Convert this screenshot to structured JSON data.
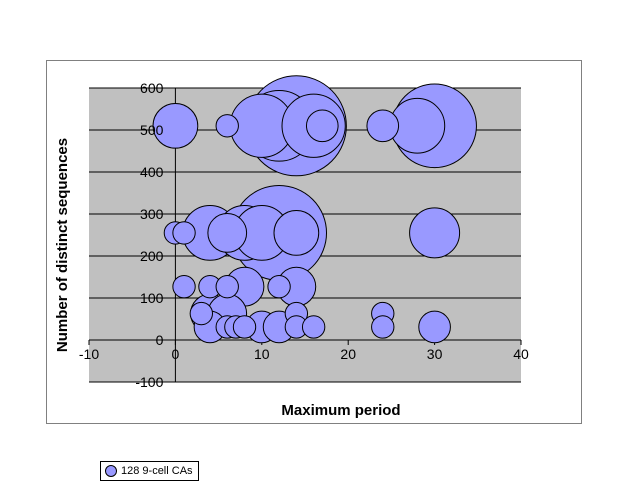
{
  "chart_data": {
    "type": "bubble",
    "xlabel": "Maximum period",
    "ylabel": "Number of distinct sequences",
    "xlim": [
      -10,
      40
    ],
    "ylim": [
      -100,
      600
    ],
    "x_ticks": [
      "-10",
      "0",
      "10",
      "20",
      "30",
      "40"
    ],
    "y_ticks": [
      "-100",
      "0",
      "100",
      "200",
      "300",
      "400",
      "500",
      "600"
    ],
    "grid": "horizontal",
    "legend_position": "bottom-left",
    "plot_background": "#c0c0c0",
    "bubble_color": "#9999ff",
    "series": [
      {
        "name": "128 9-cell CAs",
        "points": [
          {
            "x": 0,
            "y": 510,
            "size": 2
          },
          {
            "x": 6,
            "y": 510,
            "size": 0.5
          },
          {
            "x": 10,
            "y": 510,
            "size": 4
          },
          {
            "x": 12,
            "y": 510,
            "size": 5
          },
          {
            "x": 14,
            "y": 510,
            "size": 10
          },
          {
            "x": 16,
            "y": 510,
            "size": 4
          },
          {
            "x": 17,
            "y": 510,
            "size": 1
          },
          {
            "x": 24,
            "y": 510,
            "size": 1
          },
          {
            "x": 28,
            "y": 510,
            "size": 3
          },
          {
            "x": 30,
            "y": 510,
            "size": 7
          },
          {
            "x": 0,
            "y": 255,
            "size": 0.5
          },
          {
            "x": 1,
            "y": 255,
            "size": 0.5
          },
          {
            "x": 4,
            "y": 255,
            "size": 3
          },
          {
            "x": 6,
            "y": 255,
            "size": 1.5
          },
          {
            "x": 8,
            "y": 255,
            "size": 3
          },
          {
            "x": 10,
            "y": 255,
            "size": 3
          },
          {
            "x": 12,
            "y": 255,
            "size": 9
          },
          {
            "x": 14,
            "y": 255,
            "size": 2
          },
          {
            "x": 30,
            "y": 255,
            "size": 2.5
          },
          {
            "x": 1,
            "y": 127,
            "size": 0.5
          },
          {
            "x": 4,
            "y": 127,
            "size": 0.5
          },
          {
            "x": 6,
            "y": 127,
            "size": 0.5
          },
          {
            "x": 8,
            "y": 127,
            "size": 1.5
          },
          {
            "x": 12,
            "y": 127,
            "size": 0.5
          },
          {
            "x": 14,
            "y": 127,
            "size": 1.5
          },
          {
            "x": 3,
            "y": 63,
            "size": 0.5
          },
          {
            "x": 4,
            "y": 63,
            "size": 1.5
          },
          {
            "x": 6,
            "y": 63,
            "size": 1.5
          },
          {
            "x": 14,
            "y": 63,
            "size": 0.5
          },
          {
            "x": 24,
            "y": 63,
            "size": 0.5
          },
          {
            "x": 4,
            "y": 31,
            "size": 1
          },
          {
            "x": 6,
            "y": 31,
            "size": 0.5
          },
          {
            "x": 7,
            "y": 31,
            "size": 0.5
          },
          {
            "x": 8,
            "y": 31,
            "size": 0.5
          },
          {
            "x": 10,
            "y": 31,
            "size": 1
          },
          {
            "x": 12,
            "y": 31,
            "size": 1
          },
          {
            "x": 14,
            "y": 31,
            "size": 0.5
          },
          {
            "x": 16,
            "y": 31,
            "size": 0.5
          },
          {
            "x": 24,
            "y": 31,
            "size": 0.5
          },
          {
            "x": 30,
            "y": 31,
            "size": 1
          }
        ]
      }
    ]
  }
}
